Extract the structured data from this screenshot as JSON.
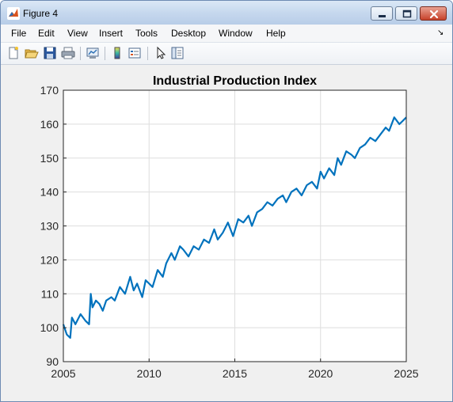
{
  "window": {
    "title": "Figure 4"
  },
  "menu": [
    "File",
    "Edit",
    "View",
    "Insert",
    "Tools",
    "Desktop",
    "Window",
    "Help"
  ],
  "dock_arrow": "↘",
  "toolbar": [
    "new-figure",
    "open-file",
    "save",
    "print",
    "link-plot",
    "insert-colorbar",
    "insert-legend",
    "edit-plot",
    "property-inspector"
  ],
  "colors": {
    "line": "#0072bd",
    "grid": "#dedede",
    "axes": "#262626"
  },
  "chart_data": {
    "type": "line",
    "title": "Industrial Production Index",
    "xlabel": "",
    "ylabel": "",
    "xlim": [
      2005,
      2025
    ],
    "ylim": [
      90,
      170
    ],
    "xticks": [
      2005,
      2010,
      2015,
      2020,
      2025
    ],
    "yticks": [
      90,
      100,
      110,
      120,
      130,
      140,
      150,
      160,
      170
    ],
    "grid": true,
    "legend": "none",
    "series": [
      {
        "x": [
          2005.0,
          2005.2,
          2005.4,
          2005.5,
          2005.7,
          2006.0,
          2006.3,
          2006.5,
          2006.6,
          2006.7,
          2006.9,
          2007.1,
          2007.3,
          2007.5,
          2007.8,
          2008.0,
          2008.3,
          2008.6,
          2008.9,
          2009.1,
          2009.3,
          2009.6,
          2009.8,
          2010.0,
          2010.2,
          2010.5,
          2010.8,
          2011.0,
          2011.3,
          2011.5,
          2011.8,
          2012.0,
          2012.3,
          2012.6,
          2012.9,
          2013.2,
          2013.5,
          2013.8,
          2014.0,
          2014.3,
          2014.6,
          2014.9,
          2015.2,
          2015.5,
          2015.8,
          2016.0,
          2016.3,
          2016.6,
          2016.9,
          2017.2,
          2017.5,
          2017.8,
          2018.0,
          2018.3,
          2018.6,
          2018.9,
          2019.2,
          2019.5,
          2019.8,
          2020.0,
          2020.2,
          2020.5,
          2020.8,
          2021.0,
          2021.2,
          2021.5,
          2021.8,
          2022.0,
          2022.3,
          2022.6,
          2022.9,
          2023.2,
          2023.5,
          2023.8,
          2024.0,
          2024.3,
          2024.6,
          2024.8,
          2025.0
        ],
        "values": [
          101,
          98,
          97,
          103,
          101,
          104,
          102,
          101,
          110,
          106,
          108,
          107,
          105,
          108,
          109,
          108,
          112,
          110,
          115,
          111,
          113,
          109,
          114,
          113,
          112,
          117,
          115,
          119,
          122,
          120,
          124,
          123,
          121,
          124,
          123,
          126,
          125,
          129,
          126,
          128,
          131,
          127,
          132,
          131,
          133,
          130,
          134,
          135,
          137,
          136,
          138,
          139,
          137,
          140,
          141,
          139,
          142,
          143,
          141,
          146,
          144,
          147,
          145,
          150,
          148,
          152,
          151,
          150,
          153,
          154,
          156,
          155,
          157,
          159,
          158,
          162,
          160,
          161,
          162
        ]
      }
    ]
  }
}
